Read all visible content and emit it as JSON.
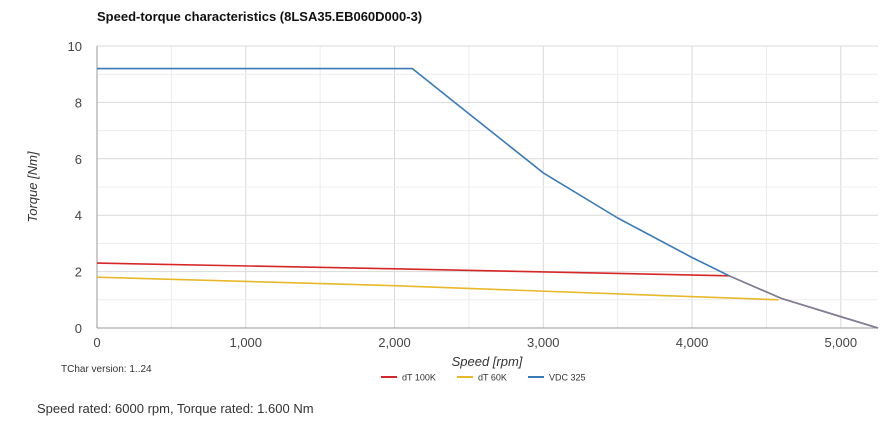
{
  "chart_data": {
    "type": "line",
    "title": "Speed-torque characteristics (8LSA35.EB060D000-3)",
    "xlabel": "Speed ",
    "xlabel_unit": "[rpm]",
    "ylabel": "Torque ",
    "ylabel_unit": "[Nm]",
    "xlim": [
      0,
      5250
    ],
    "ylim": [
      0,
      10
    ],
    "x_ticks": [
      0,
      1000,
      2000,
      3000,
      4000,
      5000
    ],
    "x_tick_labels": [
      "0",
      "1,000",
      "2,000",
      "3,000",
      "4,000",
      "5,000"
    ],
    "y_ticks": [
      0,
      2,
      4,
      6,
      8,
      10
    ],
    "y_tick_labels": [
      "0",
      "2",
      "4",
      "6",
      "8",
      "10"
    ],
    "grid": true,
    "legend_position": "bottom",
    "series": [
      {
        "name": "dT 100K",
        "color": "#d62728",
        "x": [
          0,
          2000,
          4250
        ],
        "y": [
          2.3,
          2.1,
          1.85
        ]
      },
      {
        "name": "dT 60K",
        "color": "#e8b82a",
        "x": [
          0,
          2000,
          4580
        ],
        "y": [
          1.8,
          1.5,
          1.0
        ]
      },
      {
        "name": "VDC 325",
        "color": "#3a7ab8",
        "x": [
          0,
          2120,
          2500,
          3000,
          3500,
          4000,
          4250,
          4600,
          5000,
          5250
        ],
        "y": [
          9.2,
          9.2,
          7.6,
          5.5,
          3.9,
          2.5,
          1.85,
          1.05,
          0.4,
          0.0
        ]
      },
      {
        "name": "",
        "color": "#8a7a90",
        "x": [
          4250,
          4600,
          5000,
          5250
        ],
        "y": [
          1.85,
          1.05,
          0.4,
          0.0
        ]
      }
    ]
  },
  "version_text": "TChar version: 1..24",
  "footer": "Speed rated: 6000 rpm, Torque rated: 1.600 Nm"
}
